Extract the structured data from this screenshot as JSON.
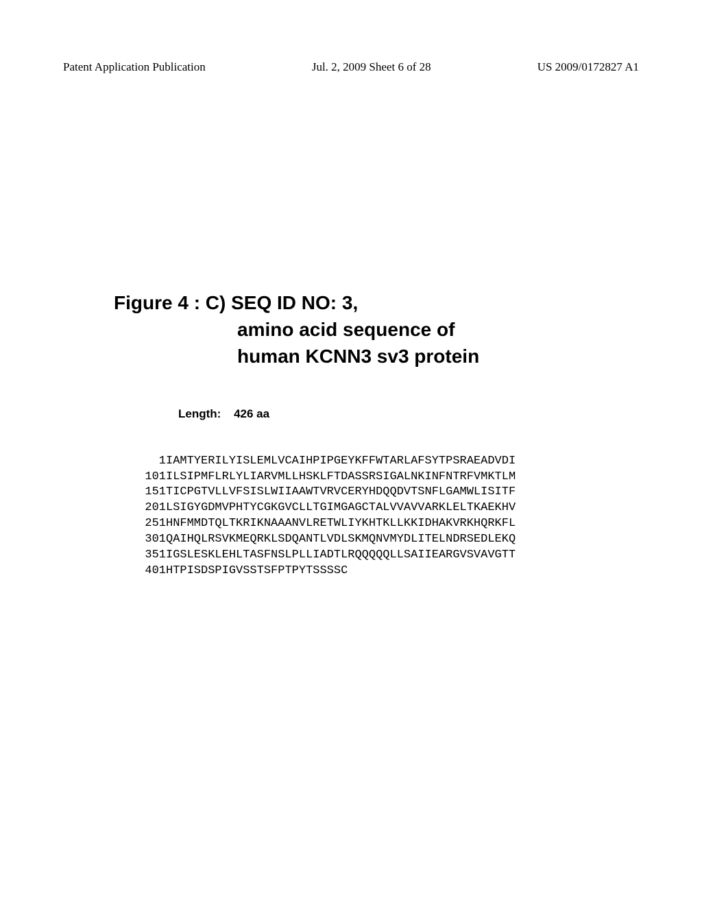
{
  "header": {
    "left": "Patent Application Publication",
    "center": "Jul. 2, 2009  Sheet 6 of 28",
    "right": "US 2009/0172827 A1"
  },
  "figure": {
    "line1": "Figure 4 : C) SEQ ID NO: 3,",
    "line2": "amino acid sequence of",
    "line3": "human KCNN3 sv3 protein"
  },
  "length": {
    "label": "Length:",
    "value": "426 aa"
  },
  "sequence": {
    "rows": [
      {
        "pos": "1",
        "b1": "IAMTYERILY",
        "b2": "ISLEMLVCAI",
        "b3": "HPIPGEYKFF",
        "b4": "WTARLAFSYT",
        "b5": "PSRAEADVDI"
      },
      {
        "pos": "101",
        "b1": "ILSIPMFLRL",
        "b2": "YLIARVMLLH",
        "b3": "SKLFTDASSR",
        "b4": "SIGALNKINF",
        "b5": "NTRFVMKTLM"
      },
      {
        "pos": "151",
        "b1": "TICPGTVLLV",
        "b2": "FSISLWIIAA",
        "b3": "WTVRVCERYH",
        "b4": "DQQDVTSNFL",
        "b5": "GAMWLISITF"
      },
      {
        "pos": "201",
        "b1": "LSIGYGDMVP",
        "b2": "HTYCGKGVCL",
        "b3": "LTGIMGAGCT",
        "b4": "ALVVAVVARK",
        "b5": "LELTKAEKHV"
      },
      {
        "pos": "251",
        "b1": "HNFMMDTQLT",
        "b2": "KRIKNAAANV",
        "b3": "LRETWLIYKH",
        "b4": "TKLLKKIDHA",
        "b5": "KVRKHQRKFL"
      },
      {
        "pos": "301",
        "b1": "QAIHQLRSVK",
        "b2": "MEQRKLSDQA",
        "b3": "NTLVDLSKMQ",
        "b4": "NVMYDLITEL",
        "b5": "NDRSEDLEKQ"
      },
      {
        "pos": "351",
        "b1": "IGSLESKLEH",
        "b2": "LTASFNSLPL",
        "b3": "LIADTLRQQQ",
        "b4": "QQLLSAIIEA",
        "b5": "RGVSVAVGTT"
      },
      {
        "pos": "401",
        "b1": "HTPISDSPIG",
        "b2": "VSSTSFPTPY",
        "b3": "TSSSSC",
        "b4": "",
        "b5": ""
      }
    ]
  },
  "styles": {
    "background_color": "#ffffff",
    "text_color": "#000000",
    "header_fontsize": 17,
    "title_fontsize": 28,
    "length_fontsize": 17,
    "sequence_fontsize": 17,
    "header_font": "Times New Roman",
    "title_font": "Arial",
    "sequence_font": "Courier New"
  }
}
